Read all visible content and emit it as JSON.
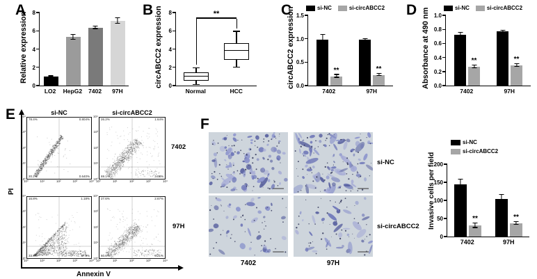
{
  "panel_labels": {
    "a": "A",
    "b": "B",
    "c": "C",
    "d": "D",
    "e": "E",
    "f": "F"
  },
  "chart_data": [
    {
      "id": "A",
      "type": "bar",
      "title": "",
      "ylabel": "Relative expression",
      "ylim": [
        0,
        8
      ],
      "yticks": [
        0,
        2,
        4,
        6,
        8
      ],
      "ytick_labels": [
        "0",
        "2",
        "4",
        "6",
        "8"
      ],
      "categories": [
        "LO2",
        "HepG2",
        "7402",
        "97H"
      ],
      "values": [
        1.0,
        5.3,
        6.35,
        7.1
      ],
      "errors": [
        0.05,
        0.25,
        0.15,
        0.3
      ],
      "bar_colors": [
        "#000000",
        "#9b9b9b",
        "#7a7a7a",
        "#d6d6d6"
      ]
    },
    {
      "id": "B",
      "type": "box",
      "title": "",
      "ylabel": "circABCC2 expression",
      "ylim": [
        0,
        8
      ],
      "yticks": [
        0,
        2,
        4,
        6,
        8
      ],
      "ytick_labels": [
        "0",
        "2",
        "4",
        "6",
        "8"
      ],
      "categories": [
        "Normal",
        "HCC"
      ],
      "boxes": [
        {
          "min": 0.1,
          "q1": 0.55,
          "median": 1.0,
          "q3": 1.45,
          "max": 1.9
        },
        {
          "min": 2.0,
          "q1": 2.8,
          "median": 3.8,
          "q3": 4.65,
          "max": 5.9
        }
      ],
      "significance": "**"
    },
    {
      "id": "C",
      "type": "bar",
      "title": "",
      "ylabel": "circABCC2 expression",
      "ylim": [
        0,
        1.5
      ],
      "yticks": [
        0,
        0.5,
        1,
        1.5
      ],
      "ytick_labels": [
        "0.0",
        "0.5",
        "1.0",
        "1.5"
      ],
      "categories": [
        "7402",
        "97H"
      ],
      "series": [
        {
          "name": "si-NC",
          "color": "#000000",
          "values": [
            0.98,
            0.98
          ],
          "errors": [
            0.1,
            0.02
          ]
        },
        {
          "name": "si-circABCC2",
          "color": "#a6a6a6",
          "values": [
            0.2,
            0.23
          ],
          "errors": [
            0.03,
            0.02
          ],
          "sig": [
            "**",
            "**"
          ]
        }
      ]
    },
    {
      "id": "D",
      "type": "bar",
      "title": "",
      "ylabel": "Absorbance at 490 nm",
      "ylim": [
        0,
        1
      ],
      "yticks": [
        0,
        0.2,
        0.4,
        0.6,
        0.8,
        1
      ],
      "ytick_labels": [
        "0.0",
        "0.2",
        "0.4",
        "0.6",
        "0.8",
        "1.0"
      ],
      "categories": [
        "7402",
        "97H"
      ],
      "series": [
        {
          "name": "si-NC",
          "color": "#000000",
          "values": [
            0.72,
            0.77
          ],
          "errors": [
            0.03,
            0.01
          ]
        },
        {
          "name": "si-circABCC2",
          "color": "#a6a6a6",
          "values": [
            0.27,
            0.29
          ],
          "errors": [
            0.02,
            0.02
          ],
          "sig": [
            "**",
            "**"
          ]
        }
      ]
    },
    {
      "id": "invasion",
      "type": "bar",
      "title": "",
      "ylabel": "Invasive cells per field",
      "ylim": [
        0,
        200
      ],
      "yticks": [
        0,
        50,
        100,
        150,
        200
      ],
      "ytick_labels": [
        "0",
        "50",
        "100",
        "150",
        "200"
      ],
      "categories": [
        "7402",
        "97H"
      ],
      "series": [
        {
          "name": "si-NC",
          "color": "#000000",
          "values": [
            145,
            104
          ],
          "errors": [
            13,
            12
          ]
        },
        {
          "name": "si-circABCC2",
          "color": "#a6a6a6",
          "values": [
            30,
            37
          ],
          "errors": [
            6,
            4
          ],
          "sig": [
            "**",
            "**"
          ]
        }
      ],
      "legend_position": "top-stacked"
    }
  ],
  "flow_panel": {
    "label": "E",
    "col_headers": [
      "si-NC",
      "si-circABCC2"
    ],
    "row_labels": [
      "7402",
      "97H"
    ],
    "x_axis_label": "Annexin V",
    "y_axis_label": "PI",
    "tick_labels": [
      "10⁰",
      "10¹",
      "10²",
      "10³",
      "10⁴"
    ],
    "dot_color": "#3a3a3a",
    "plots": [
      {
        "row": "7402",
        "col": "si-NC",
        "pattern": "tight",
        "quadrants": {
          "top_left": "78.4%",
          "top_right": "0.804%",
          "bottom_left": "20.2%",
          "bottom_right": "0.640%"
        }
      },
      {
        "row": "7402",
        "col": "si-circABCC2",
        "pattern": "wide",
        "quadrants": {
          "top_left": "26.2%",
          "top_right": "1.64%",
          "bottom_left": "69.1%",
          "bottom_right": "3.06%"
        }
      },
      {
        "row": "97H",
        "col": "si-NC",
        "pattern": "triangle",
        "quadrants": {
          "top_left": "16.8%",
          "top_right": "1.18%",
          "bottom_left": "33.9%",
          "bottom_right": "47.9%"
        }
      },
      {
        "row": "97H",
        "col": "si-circABCC2",
        "pattern": "wide2",
        "quadrants": {
          "top_left": "27.6%",
          "top_right": "2.67%",
          "bottom_left": "60.6%",
          "bottom_right": "9.21%"
        }
      }
    ]
  },
  "invasion_panel": {
    "label": "F",
    "row_labels": [
      "si-NC",
      "si-circABCC2"
    ],
    "col_labels": [
      "7402",
      "97H"
    ],
    "image_bg": "#ced5dc",
    "cell_palette": [
      "#8b93cc",
      "#6f77b8",
      "#a6abd6",
      "#565e9e"
    ],
    "images": [
      {
        "row": "si-NC",
        "col": "7402",
        "density": "high"
      },
      {
        "row": "si-NC",
        "col": "97H",
        "density": "high"
      },
      {
        "row": "si-circABCC2",
        "col": "7402",
        "density": "low"
      },
      {
        "row": "si-circABCC2",
        "col": "97H",
        "density": "low"
      }
    ]
  }
}
